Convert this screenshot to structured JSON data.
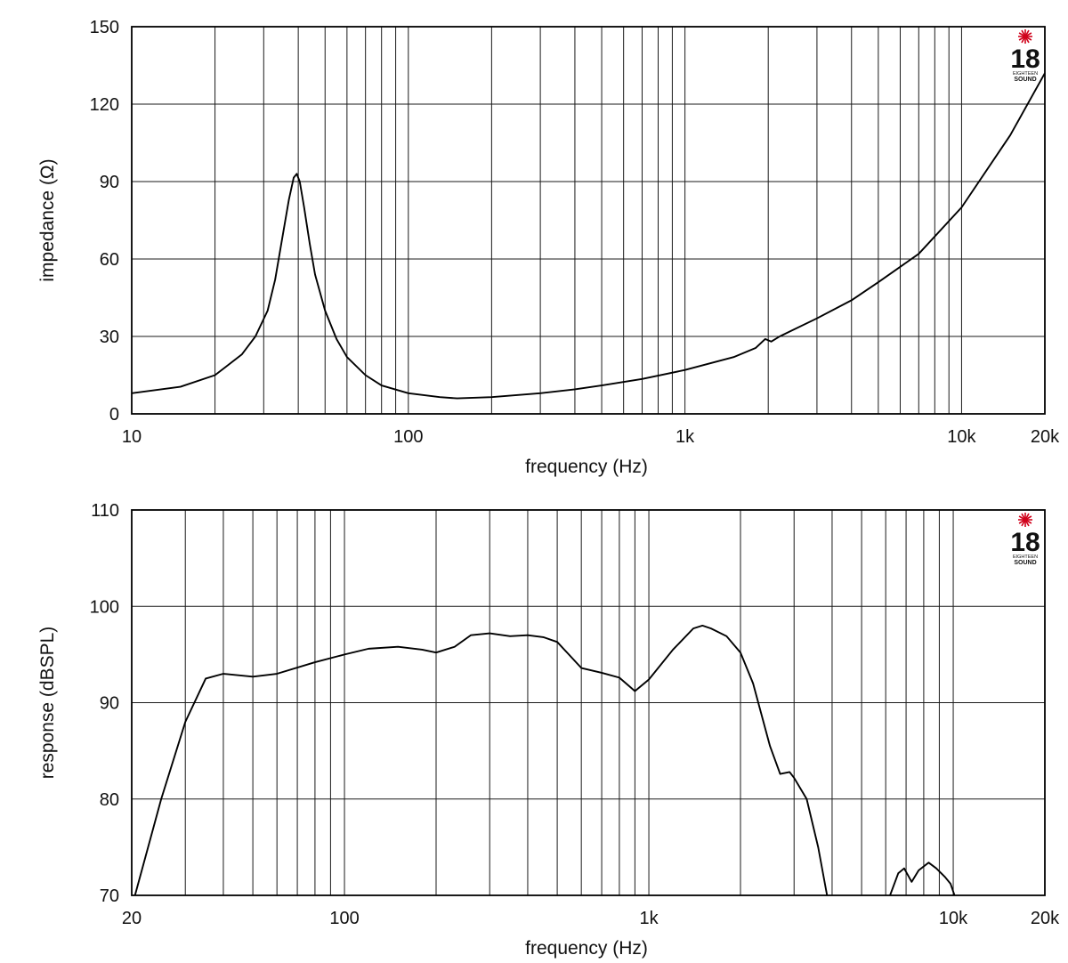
{
  "chart_data": [
    {
      "type": "line",
      "xlabel": "frequency (Hz)",
      "ylabel": "impedance (Ω)",
      "x_scale": "log",
      "xlim": [
        10,
        20000
      ],
      "ylim": [
        0,
        150
      ],
      "grid": true,
      "x_ticks": [
        {
          "value": 10,
          "label": "10"
        },
        {
          "value": 100,
          "label": "100"
        },
        {
          "value": 1000,
          "label": "1k"
        },
        {
          "value": 10000,
          "label": "10k"
        },
        {
          "value": 20000,
          "label": "20k"
        }
      ],
      "y_ticks": [
        {
          "value": 0,
          "label": "0"
        },
        {
          "value": 30,
          "label": "30"
        },
        {
          "value": 60,
          "label": "60"
        },
        {
          "value": 90,
          "label": "90"
        },
        {
          "value": 120,
          "label": "120"
        },
        {
          "value": 150,
          "label": "150"
        }
      ],
      "logo": {
        "number": "18",
        "brand": "EIGHTEEN",
        "word": "SOUND"
      },
      "series": [
        {
          "color": "#000000",
          "points": [
            [
              10,
              8
            ],
            [
              15,
              10.5
            ],
            [
              20,
              15
            ],
            [
              25,
              23
            ],
            [
              28,
              30
            ],
            [
              31,
              40
            ],
            [
              33,
              52
            ],
            [
              35,
              68
            ],
            [
              37,
              83
            ],
            [
              38.5,
              91.5
            ],
            [
              39.5,
              93
            ],
            [
              40.5,
              90
            ],
            [
              42,
              80
            ],
            [
              44,
              66
            ],
            [
              46,
              54
            ],
            [
              50,
              40
            ],
            [
              55,
              29
            ],
            [
              60,
              22
            ],
            [
              70,
              15
            ],
            [
              80,
              11
            ],
            [
              100,
              8
            ],
            [
              130,
              6.5
            ],
            [
              150,
              6
            ],
            [
              200,
              6.5
            ],
            [
              300,
              8
            ],
            [
              400,
              9.5
            ],
            [
              500,
              11
            ],
            [
              700,
              13.5
            ],
            [
              1000,
              17
            ],
            [
              1500,
              22
            ],
            [
              1800,
              25.5
            ],
            [
              1950,
              29
            ],
            [
              2050,
              28
            ],
            [
              2200,
              30
            ],
            [
              3000,
              37
            ],
            [
              4000,
              44
            ],
            [
              5000,
              51
            ],
            [
              7000,
              62
            ],
            [
              10000,
              80
            ],
            [
              15000,
              108
            ],
            [
              20000,
              132
            ]
          ]
        }
      ]
    },
    {
      "type": "line",
      "xlabel": "frequency (Hz)",
      "ylabel": "response (dBSPL)",
      "x_scale": "log",
      "xlim": [
        20,
        20000
      ],
      "ylim": [
        70,
        110
      ],
      "grid": true,
      "x_ticks": [
        {
          "value": 20,
          "label": "20"
        },
        {
          "value": 100,
          "label": "100"
        },
        {
          "value": 1000,
          "label": "1k"
        },
        {
          "value": 10000,
          "label": "10k"
        },
        {
          "value": 20000,
          "label": "20k"
        }
      ],
      "y_ticks": [
        {
          "value": 70,
          "label": "70"
        },
        {
          "value": 80,
          "label": "80"
        },
        {
          "value": 90,
          "label": "90"
        },
        {
          "value": 100,
          "label": "100"
        },
        {
          "value": 110,
          "label": "110"
        }
      ],
      "logo": {
        "number": "18",
        "brand": "EIGHTEEN",
        "word": "SOUND"
      },
      "series": [
        {
          "color": "#000000",
          "segments": [
            [
              [
                20.5,
                70
              ],
              [
                25,
                80
              ],
              [
                30,
                88
              ],
              [
                35,
                92.5
              ],
              [
                40,
                93
              ],
              [
                50,
                92.7
              ],
              [
                60,
                93
              ],
              [
                80,
                94.2
              ],
              [
                100,
                95
              ],
              [
                120,
                95.6
              ],
              [
                150,
                95.8
              ],
              [
                180,
                95.5
              ],
              [
                200,
                95.2
              ],
              [
                230,
                95.8
              ],
              [
                260,
                97
              ],
              [
                300,
                97.2
              ],
              [
                350,
                96.9
              ],
              [
                400,
                97
              ],
              [
                450,
                96.8
              ],
              [
                500,
                96.3
              ],
              [
                600,
                93.6
              ],
              [
                700,
                93.1
              ],
              [
                800,
                92.6
              ],
              [
                900,
                91.2
              ],
              [
                1000,
                92.4
              ],
              [
                1200,
                95.5
              ],
              [
                1400,
                97.7
              ],
              [
                1500,
                98
              ],
              [
                1600,
                97.7
              ],
              [
                1800,
                96.9
              ],
              [
                2000,
                95.2
              ],
              [
                2200,
                92
              ],
              [
                2500,
                85.5
              ],
              [
                2700,
                82.6
              ],
              [
                2900,
                82.8
              ],
              [
                3000,
                82.2
              ],
              [
                3300,
                80
              ],
              [
                3600,
                75
              ],
              [
                3850,
                70
              ]
            ],
            [
              [
                6200,
                70
              ],
              [
                6600,
                72.3
              ],
              [
                6900,
                72.8
              ],
              [
                7300,
                71.4
              ],
              [
                7700,
                72.6
              ],
              [
                8300,
                73.4
              ],
              [
                8800,
                72.8
              ],
              [
                9400,
                71.9
              ],
              [
                9800,
                71.2
              ],
              [
                10100,
                70
              ]
            ]
          ]
        }
      ]
    }
  ]
}
